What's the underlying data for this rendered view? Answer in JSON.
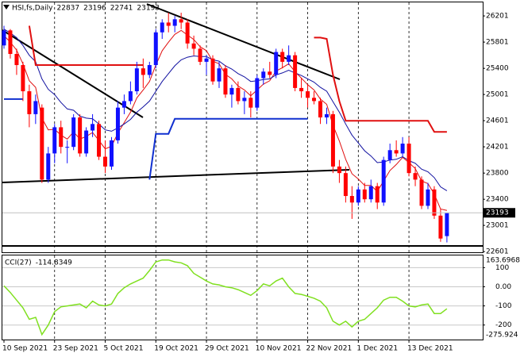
{
  "chart_data": [
    {
      "type": "candlestick",
      "title": "HSI,fs,Daily",
      "categories": [
        "10 Sep 2021",
        null,
        null,
        null,
        null,
        null,
        null,
        null,
        "23 Sep 2021",
        null,
        null,
        null,
        null,
        null,
        null,
        null,
        "5 Oct 2021",
        null,
        null,
        null,
        null,
        null,
        null,
        null,
        "19 Oct 2021",
        null,
        null,
        null,
        null,
        null,
        null,
        null,
        "29 Oct 2021",
        null,
        null,
        null,
        null,
        null,
        null,
        null,
        "10 Nov 2021",
        null,
        null,
        null,
        null,
        null,
        null,
        null,
        "22 Nov 2021",
        null,
        null,
        null,
        null,
        null,
        null,
        null,
        "1 Dec 2021",
        null,
        null,
        null,
        null,
        null,
        null,
        null,
        "13 Dec 2021",
        null,
        null,
        null,
        null,
        null,
        null
      ],
      "open": [
        25750,
        25980,
        25620,
        25450,
        25050,
        24700,
        24800,
        23700,
        24100,
        24500,
        24200,
        24200,
        24650,
        24100,
        24450,
        24550,
        24050,
        23900,
        24300,
        24800,
        24900,
        25050,
        25400,
        25300,
        25450,
        25950,
        26100,
        26050,
        26150,
        26100,
        25780,
        25700,
        25500,
        25550,
        25200,
        25400,
        25000,
        25100,
        24900,
        24950,
        24800,
        25250,
        25350,
        25300,
        25650,
        25500,
        25600,
        25100,
        25050,
        24950,
        24900,
        24650,
        24700,
        23900,
        23800,
        23450,
        23350,
        23550,
        23400,
        23600,
        23350,
        24000,
        24150,
        24100,
        24250,
        23800,
        23700,
        23300,
        23550,
        23150,
        22837
      ],
      "high": [
        26050,
        26000,
        25700,
        25500,
        25150,
        25000,
        24850,
        24200,
        24550,
        24600,
        24300,
        24700,
        24700,
        24500,
        24700,
        24600,
        24300,
        24350,
        24900,
        25000,
        25200,
        25500,
        25550,
        25500,
        26000,
        26150,
        26250,
        26200,
        26250,
        26150,
        25900,
        25750,
        25600,
        25600,
        25500,
        25450,
        25150,
        25200,
        25050,
        25050,
        25300,
        25400,
        25500,
        25700,
        25700,
        25750,
        25650,
        25250,
        25150,
        25050,
        24950,
        24800,
        24750,
        24000,
        23900,
        23600,
        23600,
        23650,
        23700,
        23650,
        24050,
        24250,
        24300,
        24350,
        24350,
        23900,
        23750,
        23650,
        23600,
        23250,
        23196
      ],
      "low": [
        25700,
        25550,
        25300,
        24900,
        24500,
        24550,
        23650,
        23650,
        23950,
        24100,
        23950,
        24150,
        24050,
        24050,
        24350,
        24000,
        23800,
        23850,
        24250,
        24700,
        24850,
        25000,
        25100,
        25250,
        25400,
        25850,
        25950,
        25950,
        26000,
        25700,
        25600,
        25450,
        25300,
        25150,
        25100,
        24950,
        24800,
        24850,
        24700,
        24650,
        24750,
        25150,
        25250,
        25250,
        25400,
        25450,
        25050,
        24950,
        24800,
        24850,
        24550,
        24550,
        23800,
        23650,
        23350,
        23100,
        23300,
        23350,
        23350,
        23250,
        23300,
        23950,
        24050,
        24050,
        23750,
        23600,
        23250,
        23250,
        23100,
        22750,
        22741
      ],
      "close": [
        25980,
        25620,
        25450,
        25050,
        24700,
        24900,
        23700,
        24100,
        24500,
        24200,
        24200,
        24650,
        24100,
        24450,
        24550,
        24050,
        23900,
        24300,
        24800,
        24900,
        25050,
        25400,
        25300,
        25450,
        25950,
        26100,
        26050,
        26150,
        26100,
        25780,
        25700,
        25500,
        25550,
        25200,
        25400,
        25000,
        25100,
        24900,
        24950,
        24800,
        25250,
        25350,
        25300,
        25650,
        25500,
        25600,
        25100,
        25050,
        24950,
        24900,
        24650,
        24700,
        23900,
        23800,
        23450,
        23350,
        23550,
        23400,
        23600,
        23350,
        24000,
        24150,
        24100,
        24250,
        23800,
        23700,
        23300,
        23550,
        23150,
        22800,
        23193
      ],
      "up_color": "#1010ff",
      "down_color": "#ff0000",
      "series": [
        {
          "color": "#e01010",
          "width": 1,
          "values": [
            25900,
            25800,
            25680,
            25470,
            25210,
            25110,
            24640,
            24460,
            24470,
            24380,
            24320,
            24430,
            24320,
            24360,
            24420,
            24300,
            24170,
            24210,
            24410,
            24570,
            24730,
            24950,
            25070,
            25200,
            25450,
            25670,
            25800,
            25920,
            25980,
            25910,
            25840,
            25730,
            25670,
            25510,
            25470,
            25310,
            25240,
            25130,
            25070,
            24980,
            25070,
            25160,
            25210,
            25360,
            25410,
            25470,
            25350,
            25250,
            25150,
            25070,
            24930,
            24850,
            24530,
            24290,
            24010,
            23790,
            23710,
            23610,
            23610,
            23520,
            23680,
            23840,
            23930,
            24040,
            23960,
            23870,
            23680,
            23640,
            23480,
            23250,
            23230
          ]
        },
        {
          "color": "#1010a0",
          "width": 1,
          "values": [
            26000,
            25940,
            25870,
            25750,
            25600,
            25500,
            25240,
            25080,
            25000,
            24880,
            24780,
            24760,
            24670,
            24640,
            24630,
            24550,
            24460,
            24440,
            24490,
            24550,
            24620,
            24730,
            24810,
            24900,
            25050,
            25200,
            25320,
            25440,
            25530,
            25570,
            25590,
            25580,
            25580,
            25530,
            25510,
            25440,
            25390,
            25320,
            25270,
            25200,
            25210,
            25230,
            25240,
            25300,
            25330,
            25370,
            25330,
            25290,
            25240,
            25190,
            25110,
            25050,
            24890,
            24730,
            24550,
            24380,
            24260,
            24140,
            24060,
            23960,
            23970,
            24000,
            24010,
            24050,
            23990,
            23950,
            23860,
            23820,
            23730,
            23590,
            23530
          ]
        },
        {
          "color": "#e01010",
          "width": 2,
          "values": [
            null,
            null,
            null,
            null,
            26050,
            25450,
            25450,
            25450,
            25450,
            25450,
            25450,
            25450,
            25450,
            25450,
            25450,
            25450,
            25450,
            25450,
            25450,
            25450,
            25450,
            25450,
            25450,
            null,
            null,
            null,
            null,
            null,
            null,
            null,
            null,
            null,
            null,
            null,
            null,
            null,
            null,
            null,
            null,
            null,
            null,
            null,
            null,
            null,
            null,
            null,
            null,
            null,
            null,
            25870,
            25870,
            25850,
            25300,
            24900,
            24600,
            24600,
            24600,
            24600,
            24600,
            24600,
            24600,
            24600,
            24600,
            24600,
            24600,
            24600,
            24600,
            24600,
            24430,
            24430,
            24430
          ]
        },
        {
          "color": "#1030d0",
          "width": 2,
          "values": [
            24930,
            24930,
            24930,
            24930,
            null,
            null,
            null,
            null,
            null,
            null,
            null,
            null,
            null,
            null,
            null,
            null,
            null,
            null,
            null,
            null,
            null,
            null,
            null,
            23700,
            24400,
            24400,
            24400,
            24630,
            24630,
            24630,
            24630,
            24630,
            24630,
            24630,
            24630,
            24630,
            24630,
            24630,
            24630,
            24630,
            24630,
            24630,
            24630,
            24630,
            24630,
            24630,
            24630,
            24630,
            24630,
            null,
            null,
            null,
            null,
            null,
            null,
            null,
            null,
            null,
            null,
            null,
            null,
            null,
            null,
            null,
            null,
            null,
            null,
            null,
            null,
            null,
            null
          ]
        }
      ],
      "ylim": [
        22590,
        26420
      ],
      "yticks": [
        26201,
        25801,
        25400,
        25001,
        24601,
        24201,
        23800,
        23400,
        23001,
        22601
      ],
      "grid": "vertical"
    },
    {
      "type": "line",
      "title": "CCI(27)",
      "color": "#80e020",
      "values": [
        5,
        -30,
        -70,
        -110,
        -170,
        -160,
        -250,
        -200,
        -130,
        -105,
        -100,
        -95,
        -90,
        -110,
        -75,
        -95,
        -100,
        -90,
        -35,
        -5,
        15,
        30,
        45,
        85,
        130,
        140,
        140,
        130,
        125,
        110,
        70,
        50,
        30,
        15,
        10,
        0,
        -5,
        -15,
        -30,
        -45,
        -20,
        15,
        5,
        30,
        45,
        0,
        -35,
        -40,
        -50,
        -60,
        -75,
        -110,
        -180,
        -200,
        -180,
        -210,
        -180,
        -170,
        -140,
        -110,
        -70,
        -55,
        -55,
        -75,
        -100,
        -105,
        -95,
        -90,
        -140,
        -140,
        -114.8349
      ],
      "ylim": [
        -275.924,
        163.6968
      ],
      "yticks": [
        100,
        {
          "value": 0,
          "label": "0.00"
        },
        -100,
        -200
      ]
    }
  ]
}
